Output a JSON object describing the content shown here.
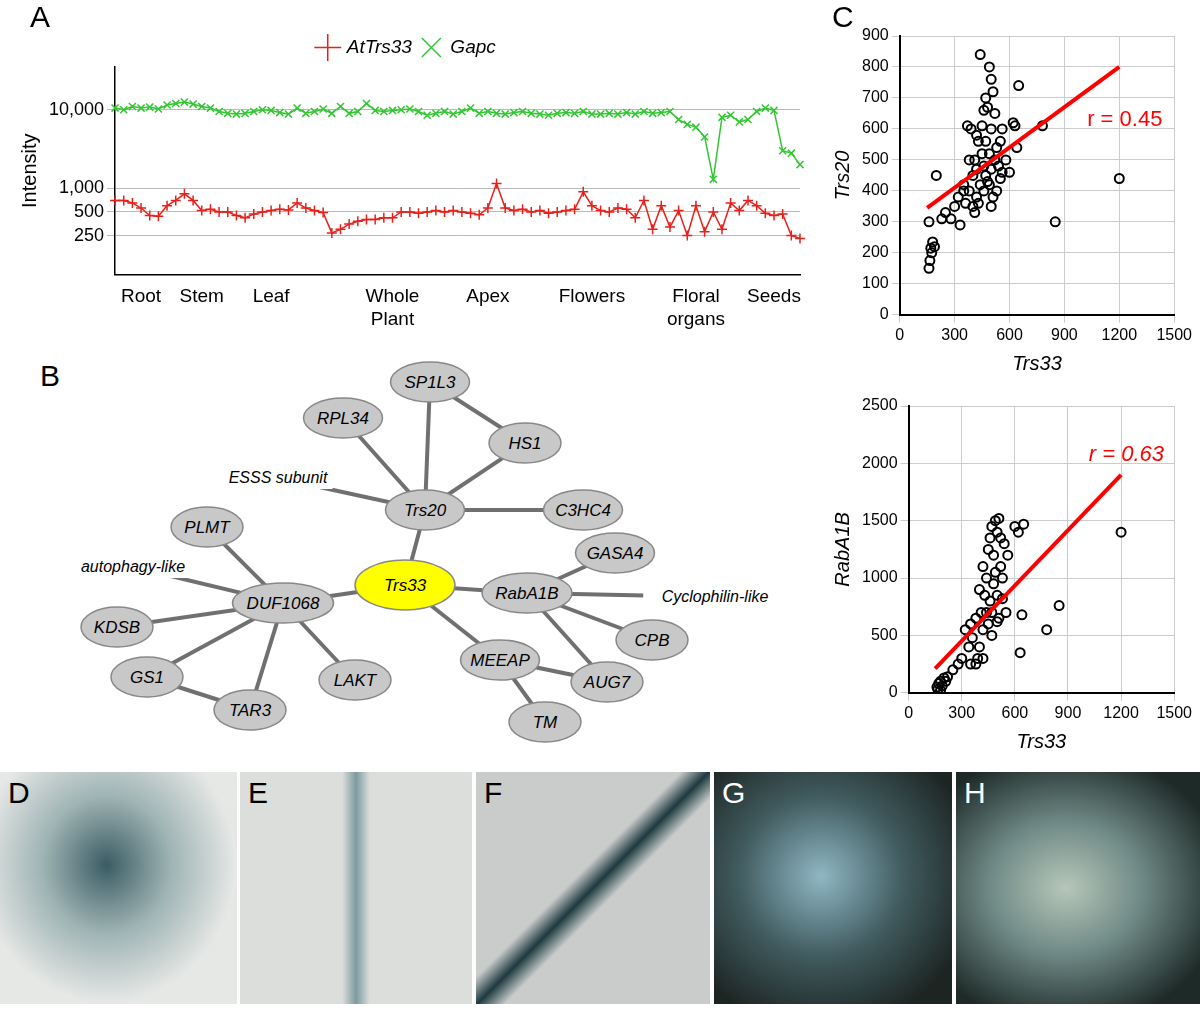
{
  "chart_data": [
    {
      "panel": "A",
      "type": "line",
      "y_label": "Intensity",
      "log": "y",
      "categories": [
        null,
        null,
        null,
        "Root",
        null,
        null,
        null,
        null,
        null,
        null,
        "Stem",
        null,
        null,
        null,
        null,
        null,
        null,
        null,
        "Leaf",
        null,
        null,
        null,
        null,
        null,
        null,
        null,
        null,
        null,
        null,
        null,
        null,
        null,
        "Whole Plant",
        null,
        null,
        null,
        null,
        null,
        null,
        null,
        null,
        null,
        null,
        "Apex",
        null,
        null,
        null,
        null,
        null,
        null,
        null,
        null,
        null,
        null,
        null,
        "Flowers",
        null,
        null,
        null,
        null,
        null,
        null,
        null,
        null,
        null,
        null,
        null,
        "Floral organs",
        null,
        null,
        null,
        null,
        null,
        null,
        null,
        null,
        "Seeds",
        null,
        null,
        null
      ],
      "ylim": [
        80,
        35000
      ],
      "yticks": [
        250,
        500,
        {
          "value": 1000,
          "label": "1,000"
        },
        {
          "value": 10000,
          "label": "10,000"
        }
      ],
      "grid": true,
      "legend": "top",
      "series": [
        {
          "name": "AtTrs33",
          "color": "#e8201a",
          "marker": "plus",
          "values": [
            700,
            700,
            650,
            560,
            450,
            440,
            600,
            700,
            850,
            700,
            520,
            540,
            500,
            500,
            450,
            420,
            470,
            500,
            520,
            540,
            530,
            650,
            560,
            520,
            490,
            270,
            300,
            350,
            380,
            400,
            400,
            420,
            420,
            500,
            500,
            480,
            500,
            520,
            500,
            520,
            500,
            480,
            460,
            560,
            1150,
            560,
            520,
            540,
            500,
            520,
            480,
            500,
            520,
            540,
            900,
            600,
            520,
            500,
            560,
            540,
            420,
            700,
            300,
            600,
            320,
            520,
            250,
            600,
            280,
            500,
            300,
            650,
            520,
            700,
            600,
            480,
            450,
            470,
            250,
            230
          ]
        },
        {
          "name": "Gapc",
          "color": "#33c633",
          "marker": "x",
          "values": [
            10500,
            10000,
            11000,
            10500,
            10800,
            10200,
            11500,
            12000,
            12500,
            11800,
            11000,
            10500,
            9500,
            9000,
            8800,
            9000,
            9500,
            10000,
            9800,
            9200,
            8800,
            10500,
            9000,
            9500,
            10200,
            9000,
            11000,
            9000,
            9500,
            12000,
            9800,
            9500,
            9800,
            10000,
            10200,
            9500,
            8500,
            9000,
            9500,
            8800,
            9500,
            10500,
            9000,
            9500,
            9000,
            8800,
            9200,
            9500,
            9000,
            8800,
            8500,
            9000,
            9200,
            9000,
            9500,
            8800,
            8800,
            9000,
            8800,
            9200,
            8800,
            9500,
            9000,
            9200,
            9500,
            7500,
            6500,
            6000,
            4500,
            1300,
            8000,
            8500,
            7000,
            7500,
            9500,
            10500,
            9800,
            3000,
            2800,
            2000
          ]
        }
      ]
    },
    {
      "panel": "C",
      "type": "scatter",
      "x_label": "Trs33",
      "y_label": "Trs20",
      "xlim": [
        0,
        1500
      ],
      "xticks": [
        0,
        300,
        600,
        900,
        1200,
        1500
      ],
      "ylim": [
        0,
        900
      ],
      "yticks": [
        0,
        100,
        200,
        300,
        400,
        500,
        600,
        700,
        800,
        900
      ],
      "grid": true,
      "series": [
        {
          "type": "scatter",
          "marker": "circle",
          "color": "#000000",
          "x": [
            160,
            165,
            170,
            180,
            175,
            190,
            160,
            200,
            230,
            250,
            280,
            300,
            320,
            330,
            350,
            360,
            370,
            380,
            390,
            400,
            400,
            410,
            420,
            420,
            430,
            440,
            440,
            450,
            450,
            460,
            460,
            470,
            470,
            480,
            480,
            490,
            490,
            500,
            500,
            500,
            510,
            510,
            520,
            520,
            530,
            540,
            550,
            560,
            560,
            580,
            600,
            620,
            630,
            650,
            640,
            780,
            850,
            1200,
            380,
            410,
            430,
            460,
            490,
            530,
            350,
            420,
            470,
            500,
            550
          ],
          "values": [
            150,
            175,
            215,
            235,
            200,
            220,
            300,
            450,
            310,
            330,
            310,
            350,
            380,
            290,
            420,
            360,
            610,
            400,
            600,
            350,
            450,
            500,
            470,
            380,
            560,
            840,
            420,
            520,
            610,
            660,
            400,
            700,
            560,
            670,
            430,
            800,
            520,
            760,
            470,
            600,
            720,
            380,
            650,
            500,
            540,
            480,
            560,
            460,
            600,
            500,
            460,
            620,
            610,
            740,
            540,
            610,
            300,
            440,
            500,
            330,
            360,
            480,
            420,
            400,
            400,
            580,
            450,
            350,
            440
          ]
        },
        {
          "type": "line",
          "color": "#ff0000",
          "x": [
            150,
            1200
          ],
          "values": [
            345,
            800
          ]
        }
      ],
      "annotations": [
        {
          "text": "r = 0.45",
          "color": "#ff0000"
        }
      ]
    },
    {
      "type": "scatter",
      "x_label": "Trs33",
      "y_label": "RabA1B",
      "xlim": [
        0,
        1500
      ],
      "xticks": [
        0,
        300,
        600,
        900,
        1200,
        1500
      ],
      "ylim": [
        0,
        2500
      ],
      "yticks": [
        0,
        500,
        1000,
        1500,
        2000,
        2500
      ],
      "grid": true,
      "series": [
        {
          "type": "scatter",
          "marker": "circle",
          "color": "#000000",
          "x": [
            160,
            165,
            170,
            180,
            190,
            200,
            210,
            220,
            180,
            250,
            280,
            300,
            320,
            340,
            350,
            360,
            380,
            400,
            400,
            410,
            420,
            420,
            430,
            440,
            450,
            450,
            460,
            460,
            470,
            470,
            480,
            480,
            490,
            490,
            500,
            500,
            510,
            510,
            520,
            520,
            530,
            540,
            550,
            560,
            600,
            620,
            630,
            640,
            650,
            780,
            850,
            1200,
            380,
            420,
            440,
            470,
            500,
            530,
            390,
            350
          ],
          "values": [
            50,
            30,
            80,
            20,
            60,
            130,
            100,
            140,
            100,
            200,
            250,
            300,
            550,
            400,
            600,
            480,
            650,
            400,
            900,
            700,
            550,
            1100,
            850,
            1000,
            1250,
            600,
            1350,
            800,
            1450,
            700,
            1200,
            950,
            1500,
            1050,
            1400,
            850,
            1520,
            650,
            1350,
            1100,
            1000,
            1300,
            700,
            1200,
            1450,
            1400,
            350,
            680,
            1470,
            550,
            760,
            1400,
            250,
            300,
            700,
            500,
            620,
            820,
            300,
            250
          ]
        },
        {
          "type": "line",
          "color": "#ff0000",
          "x": [
            150,
            1200
          ],
          "values": [
            210,
            1900
          ]
        }
      ],
      "annotations": [
        {
          "text": "r = 0.63",
          "color": "#ff0000"
        }
      ]
    }
  ],
  "diagram": {
    "panel": "B",
    "nodes": [
      {
        "label": "Trs33",
        "shape": "ellipse",
        "color": "#ffff00"
      },
      {
        "label": "Trs20",
        "shape": "ellipse",
        "color": "#c8c8c8"
      },
      {
        "label": "RPL34",
        "shape": "ellipse",
        "color": "#c8c8c8"
      },
      {
        "label": "SP1L3",
        "shape": "ellipse",
        "color": "#c8c8c8"
      },
      {
        "label": "HS1",
        "shape": "ellipse",
        "color": "#c8c8c8"
      },
      {
        "label": "ESSS subunit",
        "shape": "none",
        "color": "#ffffff"
      },
      {
        "label": "C3HC4",
        "shape": "ellipse",
        "color": "#c8c8c8"
      },
      {
        "label": "DUF1068",
        "shape": "ellipse",
        "color": "#c8c8c8"
      },
      {
        "label": "PLMT",
        "shape": "ellipse",
        "color": "#c8c8c8"
      },
      {
        "label": "autophagy-like",
        "shape": "none",
        "color": "#ffffff"
      },
      {
        "label": "KDSB",
        "shape": "ellipse",
        "color": "#c8c8c8"
      },
      {
        "label": "GS1",
        "shape": "ellipse",
        "color": "#c8c8c8"
      },
      {
        "label": "TAR3",
        "shape": "ellipse",
        "color": "#c8c8c8"
      },
      {
        "label": "LAKT",
        "shape": "ellipse",
        "color": "#c8c8c8"
      },
      {
        "label": "RabA1B",
        "shape": "ellipse",
        "color": "#c8c8c8"
      },
      {
        "label": "GASA4",
        "shape": "ellipse",
        "color": "#c8c8c8"
      },
      {
        "label": "Cyclophilin-like",
        "shape": "none",
        "color": "#ffffff"
      },
      {
        "label": "CPB",
        "shape": "ellipse",
        "color": "#c8c8c8"
      },
      {
        "label": "AUG7",
        "shape": "ellipse",
        "color": "#c8c8c8"
      },
      {
        "label": "MEEAP",
        "shape": "ellipse",
        "color": "#c8c8c8"
      },
      {
        "label": "TM",
        "shape": "ellipse",
        "color": "#c8c8c8"
      }
    ],
    "edges": [
      [
        "Trs33",
        "Trs20"
      ],
      [
        "Trs33",
        "DUF1068"
      ],
      [
        "Trs33",
        "RabA1B"
      ],
      [
        "Trs33",
        "MEEAP"
      ],
      [
        "Trs20",
        "SP1L3"
      ],
      [
        "Trs20",
        "RPL34"
      ],
      [
        "Trs20",
        "HS1"
      ],
      [
        "Trs20",
        "ESSS subunit"
      ],
      [
        "Trs20",
        "C3HC4"
      ],
      [
        "SP1L3",
        "HS1"
      ],
      [
        "DUF1068",
        "PLMT"
      ],
      [
        "DUF1068",
        "autophagy-like"
      ],
      [
        "DUF1068",
        "KDSB"
      ],
      [
        "DUF1068",
        "GS1"
      ],
      [
        "DUF1068",
        "TAR3"
      ],
      [
        "DUF1068",
        "LAKT"
      ],
      [
        "GS1",
        "TAR3"
      ],
      [
        "RabA1B",
        "GASA4"
      ],
      [
        "RabA1B",
        "Cyclophilin-like"
      ],
      [
        "RabA1B",
        "CPB"
      ],
      [
        "RabA1B",
        "AUG7"
      ],
      [
        "MEEAP",
        "AUG7"
      ],
      [
        "MEEAP",
        "TM"
      ]
    ]
  },
  "photos": [
    {
      "panel": "D"
    },
    {
      "panel": "E"
    },
    {
      "panel": "F"
    },
    {
      "panel": "G"
    },
    {
      "panel": "H"
    }
  ]
}
